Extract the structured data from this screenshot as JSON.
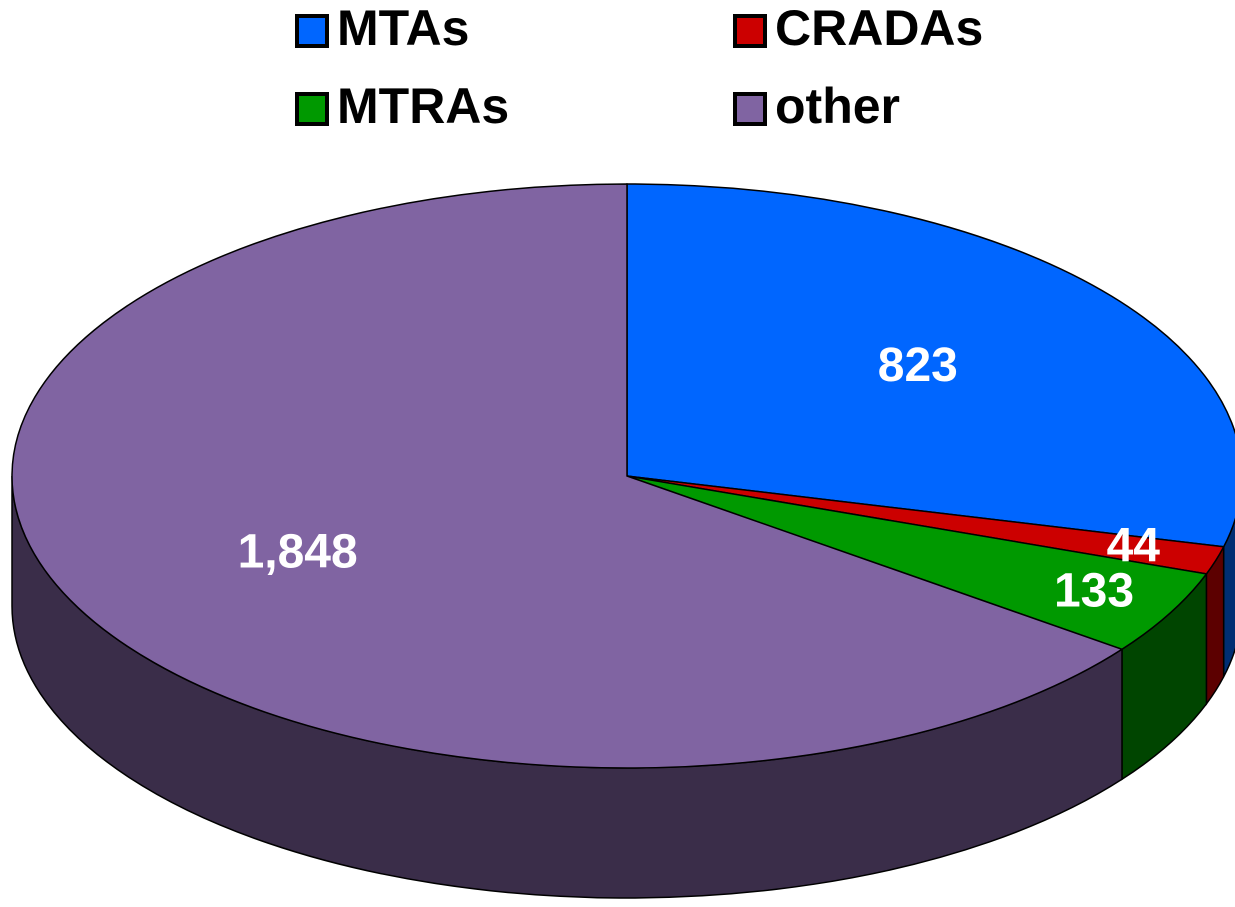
{
  "chart_data": {
    "type": "pie",
    "categories": [
      "MTAs",
      "CRADAs",
      "MTRAs",
      "other"
    ],
    "values": [
      823,
      44,
      133,
      1848
    ],
    "value_labels": [
      "823",
      "44",
      "133",
      "1,848"
    ],
    "colors": [
      "#0066ff",
      "#cc0000",
      "#009900",
      "#8064a2"
    ],
    "legend": "top"
  }
}
